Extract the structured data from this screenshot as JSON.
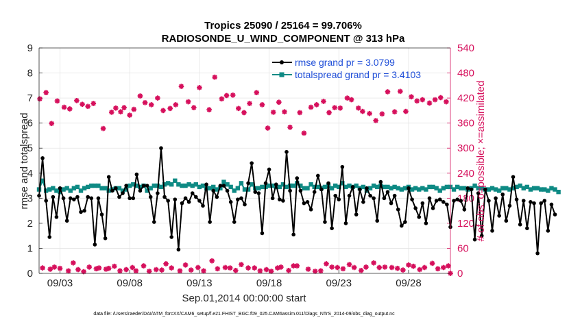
{
  "chart_data": {
    "type": "line",
    "title": "Tropics 25090 / 25164 = 99.706%",
    "subtitle": "RADIOSONDE_U_WIND_COMPONENT @ 313 hPa",
    "xlabel": "Sep.01,2014 00:00:00 start",
    "ylabel_left": "rmse and totalspread",
    "ylabel_right": "# of obs: o=possible; ×=assimilated",
    "xlim": [
      1.5,
      31.0
    ],
    "ylim_left": [
      0,
      9
    ],
    "ylim_right": [
      0,
      540
    ],
    "x_ticks": [
      3,
      8,
      13,
      18,
      23,
      28
    ],
    "x_tick_labels": [
      "09/03",
      "09/08",
      "09/13",
      "09/18",
      "09/23",
      "09/28"
    ],
    "y_left_ticks": [
      "0",
      "1",
      "2",
      "3",
      "4",
      "5",
      "6",
      "7",
      "8",
      "9"
    ],
    "y_right_ticks": [
      "0",
      "60",
      "120",
      "180",
      "240",
      "300",
      "360",
      "420",
      "480",
      "540"
    ],
    "grid": true,
    "legend": {
      "placement": "top-right",
      "entries": [
        "rmse grand pr = 3.0799",
        "totalspread grand pr = 3.4103"
      ]
    },
    "footer": "data file: /Users/raeder/DAI/ATM_forcXX/CAM6_setup/f.e21.FHIST_BGC.f09_025.CAM6assim.011/Diags_NTrS_2014-09/obs_diag_output.nc",
    "colors": {
      "rmse": "#000000",
      "spread": "#0e8a84",
      "obs": "#d6105c",
      "legend_text": "#1f4ed8"
    },
    "series": [
      {
        "name": "rmse",
        "axis": "left",
        "x_start": 1.5,
        "x_step": 0.25,
        "values": [
          3.1,
          4.6,
          2.9,
          1.45,
          3.05,
          2.25,
          3.4,
          3.0,
          2.1,
          3.0,
          2.95,
          3.05,
          2.45,
          2.5,
          3.05,
          3.0,
          1.15,
          3.0,
          2.35,
          1.4,
          3.85,
          3.3,
          3.4,
          3.05,
          3.2,
          3.5,
          3.0,
          3.0,
          3.95,
          3.3,
          3.5,
          3.5,
          3.05,
          2.05,
          3.2,
          5.0,
          3.05,
          2.9,
          1.45,
          2.95,
          0.95,
          2.8,
          3.0,
          2.85,
          3.2,
          3.05,
          2.9,
          2.7,
          3.55,
          2.05,
          3.3,
          3.05,
          3.5,
          3.5,
          3.3,
          2.85,
          2.05,
          2.95,
          3.0,
          2.75,
          3.6,
          4.4,
          3.25,
          3.2,
          1.6,
          3.6,
          4.15,
          3.0,
          3.55,
          2.95,
          2.9,
          4.85,
          3.3,
          1.55,
          3.8,
          3.3,
          2.8,
          2.85,
          2.55,
          3.25,
          3.9,
          3.35,
          2.05,
          3.6,
          1.8,
          3.1,
          2.95,
          4.25,
          2.0,
          3.1,
          3.45,
          2.35,
          3.35,
          2.85,
          3.4,
          3.1,
          3.0,
          2.1,
          3.65,
          3.0,
          3.25,
          2.8,
          3.1,
          2.55,
          1.9,
          2.05,
          3.4,
          2.95,
          2.6,
          2.25,
          2.8,
          2.0,
          3.0,
          2.6,
          2.9,
          2.95,
          2.85,
          2.75,
          1.85,
          2.9,
          2.95,
          2.9,
          2.55,
          3.4,
          3.35,
          1.35,
          3.2,
          1.5,
          3.35,
          2.9,
          1.7,
          3.0,
          2.3,
          3.15,
          2.1,
          2.7,
          3.85,
          2.95,
          1.95,
          2.9,
          1.8,
          2.85,
          2.8,
          0.8,
          2.8,
          2.9,
          1.7,
          2.75,
          2.35
        ]
      },
      {
        "name": "totalspread",
        "axis": "left",
        "x_start": 1.5,
        "x_step": 0.25,
        "values": [
          3.35,
          3.7,
          3.3,
          3.35,
          3.4,
          3.3,
          3.25,
          3.35,
          3.4,
          3.3,
          3.4,
          3.45,
          3.3,
          3.4,
          3.45,
          3.5,
          3.5,
          3.5,
          3.4,
          3.4,
          3.3,
          3.35,
          3.4,
          3.4,
          3.3,
          3.35,
          3.5,
          3.55,
          3.5,
          3.45,
          3.5,
          3.3,
          3.4,
          3.5,
          3.5,
          3.45,
          3.55,
          3.6,
          3.55,
          3.7,
          3.55,
          3.5,
          3.5,
          3.55,
          3.5,
          3.55,
          3.45,
          3.5,
          3.4,
          3.4,
          3.45,
          3.35,
          3.4,
          3.65,
          3.55,
          3.45,
          3.3,
          3.4,
          3.6,
          3.35,
          3.35,
          3.55,
          3.4,
          3.4,
          3.45,
          3.45,
          3.5,
          3.5,
          3.45,
          3.45,
          3.55,
          3.45,
          3.5,
          3.5,
          3.6,
          3.5,
          3.4,
          3.4,
          3.55,
          3.45,
          3.45,
          3.4,
          3.45,
          3.5,
          3.4,
          3.5,
          3.45,
          3.6,
          3.45,
          3.5,
          3.45,
          3.5,
          3.4,
          3.45,
          3.3,
          3.4,
          3.5,
          3.45,
          3.5,
          3.45,
          3.45,
          3.4,
          3.45,
          3.4,
          3.35,
          3.4,
          3.45,
          3.35,
          3.4,
          3.35,
          3.4,
          3.35,
          3.45,
          3.45,
          3.4,
          3.3,
          3.4,
          3.45,
          3.45,
          3.35,
          3.45,
          3.4,
          3.4,
          3.35,
          3.4,
          3.5,
          3.4,
          3.4,
          3.35,
          3.35,
          3.4,
          3.35,
          3.3,
          3.4,
          3.4,
          3.35,
          3.4,
          3.45,
          3.5,
          3.4,
          3.45,
          3.35,
          3.4,
          3.4,
          3.35,
          3.35,
          3.3,
          3.4,
          3.35,
          3.25
        ]
      },
      {
        "name": "obs possible/assimilated",
        "axis": "right",
        "points": [
          [
            1.55,
            418
          ],
          [
            1.75,
            13
          ],
          [
            2.0,
            433
          ],
          [
            2.3,
            10
          ],
          [
            2.4,
            359
          ],
          [
            2.6,
            15
          ],
          [
            2.8,
            413
          ],
          [
            3.0,
            12
          ],
          [
            3.3,
            398
          ],
          [
            3.6,
            6
          ],
          [
            3.7,
            394
          ],
          [
            3.95,
            25
          ],
          [
            4.2,
            414
          ],
          [
            4.3,
            9
          ],
          [
            4.6,
            405
          ],
          [
            4.7,
            4
          ],
          [
            5.0,
            400
          ],
          [
            5.1,
            15
          ],
          [
            5.4,
            407
          ],
          [
            5.6,
            11
          ],
          [
            5.8,
            13
          ],
          [
            6.1,
            347
          ],
          [
            6.3,
            10
          ],
          [
            6.5,
            12
          ],
          [
            6.7,
            386
          ],
          [
            6.9,
            17
          ],
          [
            7.0,
            396
          ],
          [
            7.3,
            6
          ],
          [
            7.35,
            387
          ],
          [
            7.6,
            397
          ],
          [
            7.75,
            9
          ],
          [
            8.0,
            379
          ],
          [
            8.2,
            14
          ],
          [
            8.3,
            393
          ],
          [
            8.45,
            6
          ],
          [
            8.75,
            425
          ],
          [
            9.0,
            18
          ],
          [
            9.1,
            409
          ],
          [
            9.4,
            5
          ],
          [
            9.55,
            404
          ],
          [
            9.9,
            9
          ],
          [
            10.0,
            420
          ],
          [
            10.3,
            8
          ],
          [
            10.4,
            390
          ],
          [
            10.6,
            23
          ],
          [
            10.9,
            395
          ],
          [
            11.0,
            13
          ],
          [
            11.3,
            404
          ],
          [
            11.6,
            6
          ],
          [
            11.7,
            448
          ],
          [
            12.0,
            20
          ],
          [
            12.2,
            411
          ],
          [
            12.4,
            8
          ],
          [
            12.6,
            397
          ],
          [
            12.9,
            14
          ],
          [
            13.0,
            445
          ],
          [
            13.3,
            6
          ],
          [
            13.7,
            392
          ],
          [
            13.9,
            30
          ],
          [
            14.1,
            470
          ],
          [
            14.3,
            11
          ],
          [
            14.6,
            418
          ],
          [
            14.85,
            14
          ],
          [
            14.95,
            426
          ],
          [
            15.2,
            13
          ],
          [
            15.4,
            427
          ],
          [
            15.6,
            7
          ],
          [
            15.8,
            395
          ],
          [
            16.0,
            21
          ],
          [
            16.2,
            385
          ],
          [
            16.5,
            13
          ],
          [
            16.6,
            407
          ],
          [
            16.95,
            13
          ],
          [
            17.1,
            433
          ],
          [
            17.35,
            6
          ],
          [
            17.5,
            404
          ],
          [
            17.8,
            9
          ],
          [
            17.9,
            348
          ],
          [
            18.15,
            5
          ],
          [
            18.3,
            386
          ],
          [
            18.6,
            13
          ],
          [
            18.7,
            410
          ],
          [
            18.85,
            15
          ],
          [
            19.1,
            387
          ],
          [
            19.4,
            7
          ],
          [
            19.5,
            350
          ],
          [
            19.75,
            18
          ],
          [
            20.0,
            18
          ],
          [
            20.2,
            385
          ],
          [
            20.5,
            336
          ],
          [
            20.8,
            10
          ],
          [
            21.0,
            398
          ],
          [
            21.3,
            5
          ],
          [
            21.4,
            404
          ],
          [
            21.7,
            6
          ],
          [
            21.9,
            412
          ],
          [
            22.1,
            23
          ],
          [
            22.3,
            385
          ],
          [
            22.5,
            15
          ],
          [
            22.7,
            397
          ],
          [
            22.9,
            14
          ],
          [
            23.1,
            396
          ],
          [
            23.3,
            11
          ],
          [
            23.6,
            420
          ],
          [
            23.75,
            21
          ],
          [
            23.9,
            416
          ],
          [
            24.1,
            14
          ],
          [
            24.4,
            396
          ],
          [
            24.6,
            7
          ],
          [
            24.7,
            388
          ],
          [
            24.95,
            15
          ],
          [
            25.2,
            383
          ],
          [
            25.5,
            25
          ],
          [
            25.65,
            366
          ],
          [
            25.9,
            14
          ],
          [
            26.1,
            382
          ],
          [
            26.3,
            15
          ],
          [
            26.5,
            435
          ],
          [
            26.8,
            14
          ],
          [
            27.0,
            387
          ],
          [
            27.2,
            12
          ],
          [
            27.4,
            436
          ],
          [
            27.6,
            8
          ],
          [
            27.8,
            388
          ],
          [
            28.0,
            20
          ],
          [
            28.2,
            423
          ],
          [
            28.35,
            17
          ],
          [
            28.6,
            413
          ],
          [
            28.8,
            9
          ],
          [
            29.0,
            416
          ],
          [
            29.15,
            14
          ],
          [
            29.5,
            408
          ],
          [
            29.7,
            24
          ],
          [
            29.9,
            416
          ],
          [
            30.1,
            11
          ],
          [
            30.3,
            421
          ],
          [
            30.5,
            14
          ],
          [
            30.7,
            411
          ],
          [
            30.85,
            18
          ],
          [
            31.0,
            0
          ]
        ]
      }
    ]
  }
}
